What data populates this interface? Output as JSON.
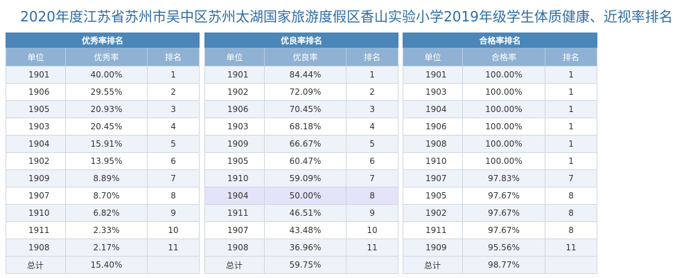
{
  "title": "2020年度江苏省苏州市吴中区苏州太湖国家旅游度假区香山实验小学2019年级学生体质健康、近视率排名",
  "tables": [
    {
      "group": "优秀率排名",
      "headers": [
        "单位",
        "优秀率",
        "排名"
      ],
      "rows": [
        [
          "1901",
          "40.00%",
          "1"
        ],
        [
          "1906",
          "29.55%",
          "2"
        ],
        [
          "1905",
          "20.93%",
          "3"
        ],
        [
          "1903",
          "20.45%",
          "4"
        ],
        [
          "1904",
          "15.91%",
          "5"
        ],
        [
          "1902",
          "13.95%",
          "6"
        ],
        [
          "1909",
          "8.89%",
          "7"
        ],
        [
          "1907",
          "8.70%",
          "8"
        ],
        [
          "1910",
          "6.82%",
          "9"
        ],
        [
          "1911",
          "2.33%",
          "10"
        ],
        [
          "1908",
          "2.17%",
          "11"
        ]
      ],
      "total": [
        "总计",
        "15.40%",
        ""
      ]
    },
    {
      "group": "优良率排名",
      "headers": [
        "单位",
        "优良率",
        "排名"
      ],
      "rows": [
        [
          "1901",
          "84.44%",
          "1"
        ],
        [
          "1902",
          "72.09%",
          "2"
        ],
        [
          "1906",
          "70.45%",
          "3"
        ],
        [
          "1903",
          "68.18%",
          "4"
        ],
        [
          "1909",
          "66.67%",
          "5"
        ],
        [
          "1905",
          "60.47%",
          "6"
        ],
        [
          "1910",
          "59.09%",
          "7"
        ],
        [
          "1904",
          "50.00%",
          "8"
        ],
        [
          "1911",
          "46.51%",
          "9"
        ],
        [
          "1907",
          "43.48%",
          "10"
        ],
        [
          "1908",
          "36.96%",
          "11"
        ]
      ],
      "total": [
        "总计",
        "59.75%",
        ""
      ]
    },
    {
      "group": "合格率排名",
      "headers": [
        "单位",
        "合格率",
        "排名"
      ],
      "rows": [
        [
          "1901",
          "100.00%",
          "1"
        ],
        [
          "1903",
          "100.00%",
          "1"
        ],
        [
          "1904",
          "100.00%",
          "1"
        ],
        [
          "1906",
          "100.00%",
          "1"
        ],
        [
          "1908",
          "100.00%",
          "1"
        ],
        [
          "1910",
          "100.00%",
          "1"
        ],
        [
          "1907",
          "97.83%",
          "7"
        ],
        [
          "1905",
          "97.67%",
          "8"
        ],
        [
          "1902",
          "97.67%",
          "8"
        ],
        [
          "1911",
          "97.67%",
          "8"
        ],
        [
          "1909",
          "95.56%",
          "11"
        ]
      ],
      "total": [
        "总计",
        "98.77%",
        ""
      ]
    }
  ],
  "colors": {
    "title": "#2e6da4",
    "group_header": "#4a86b8",
    "column_header": "#8fb2d4",
    "row_alt": "#eef3f9",
    "row_highlight": "#e3e3fa"
  }
}
